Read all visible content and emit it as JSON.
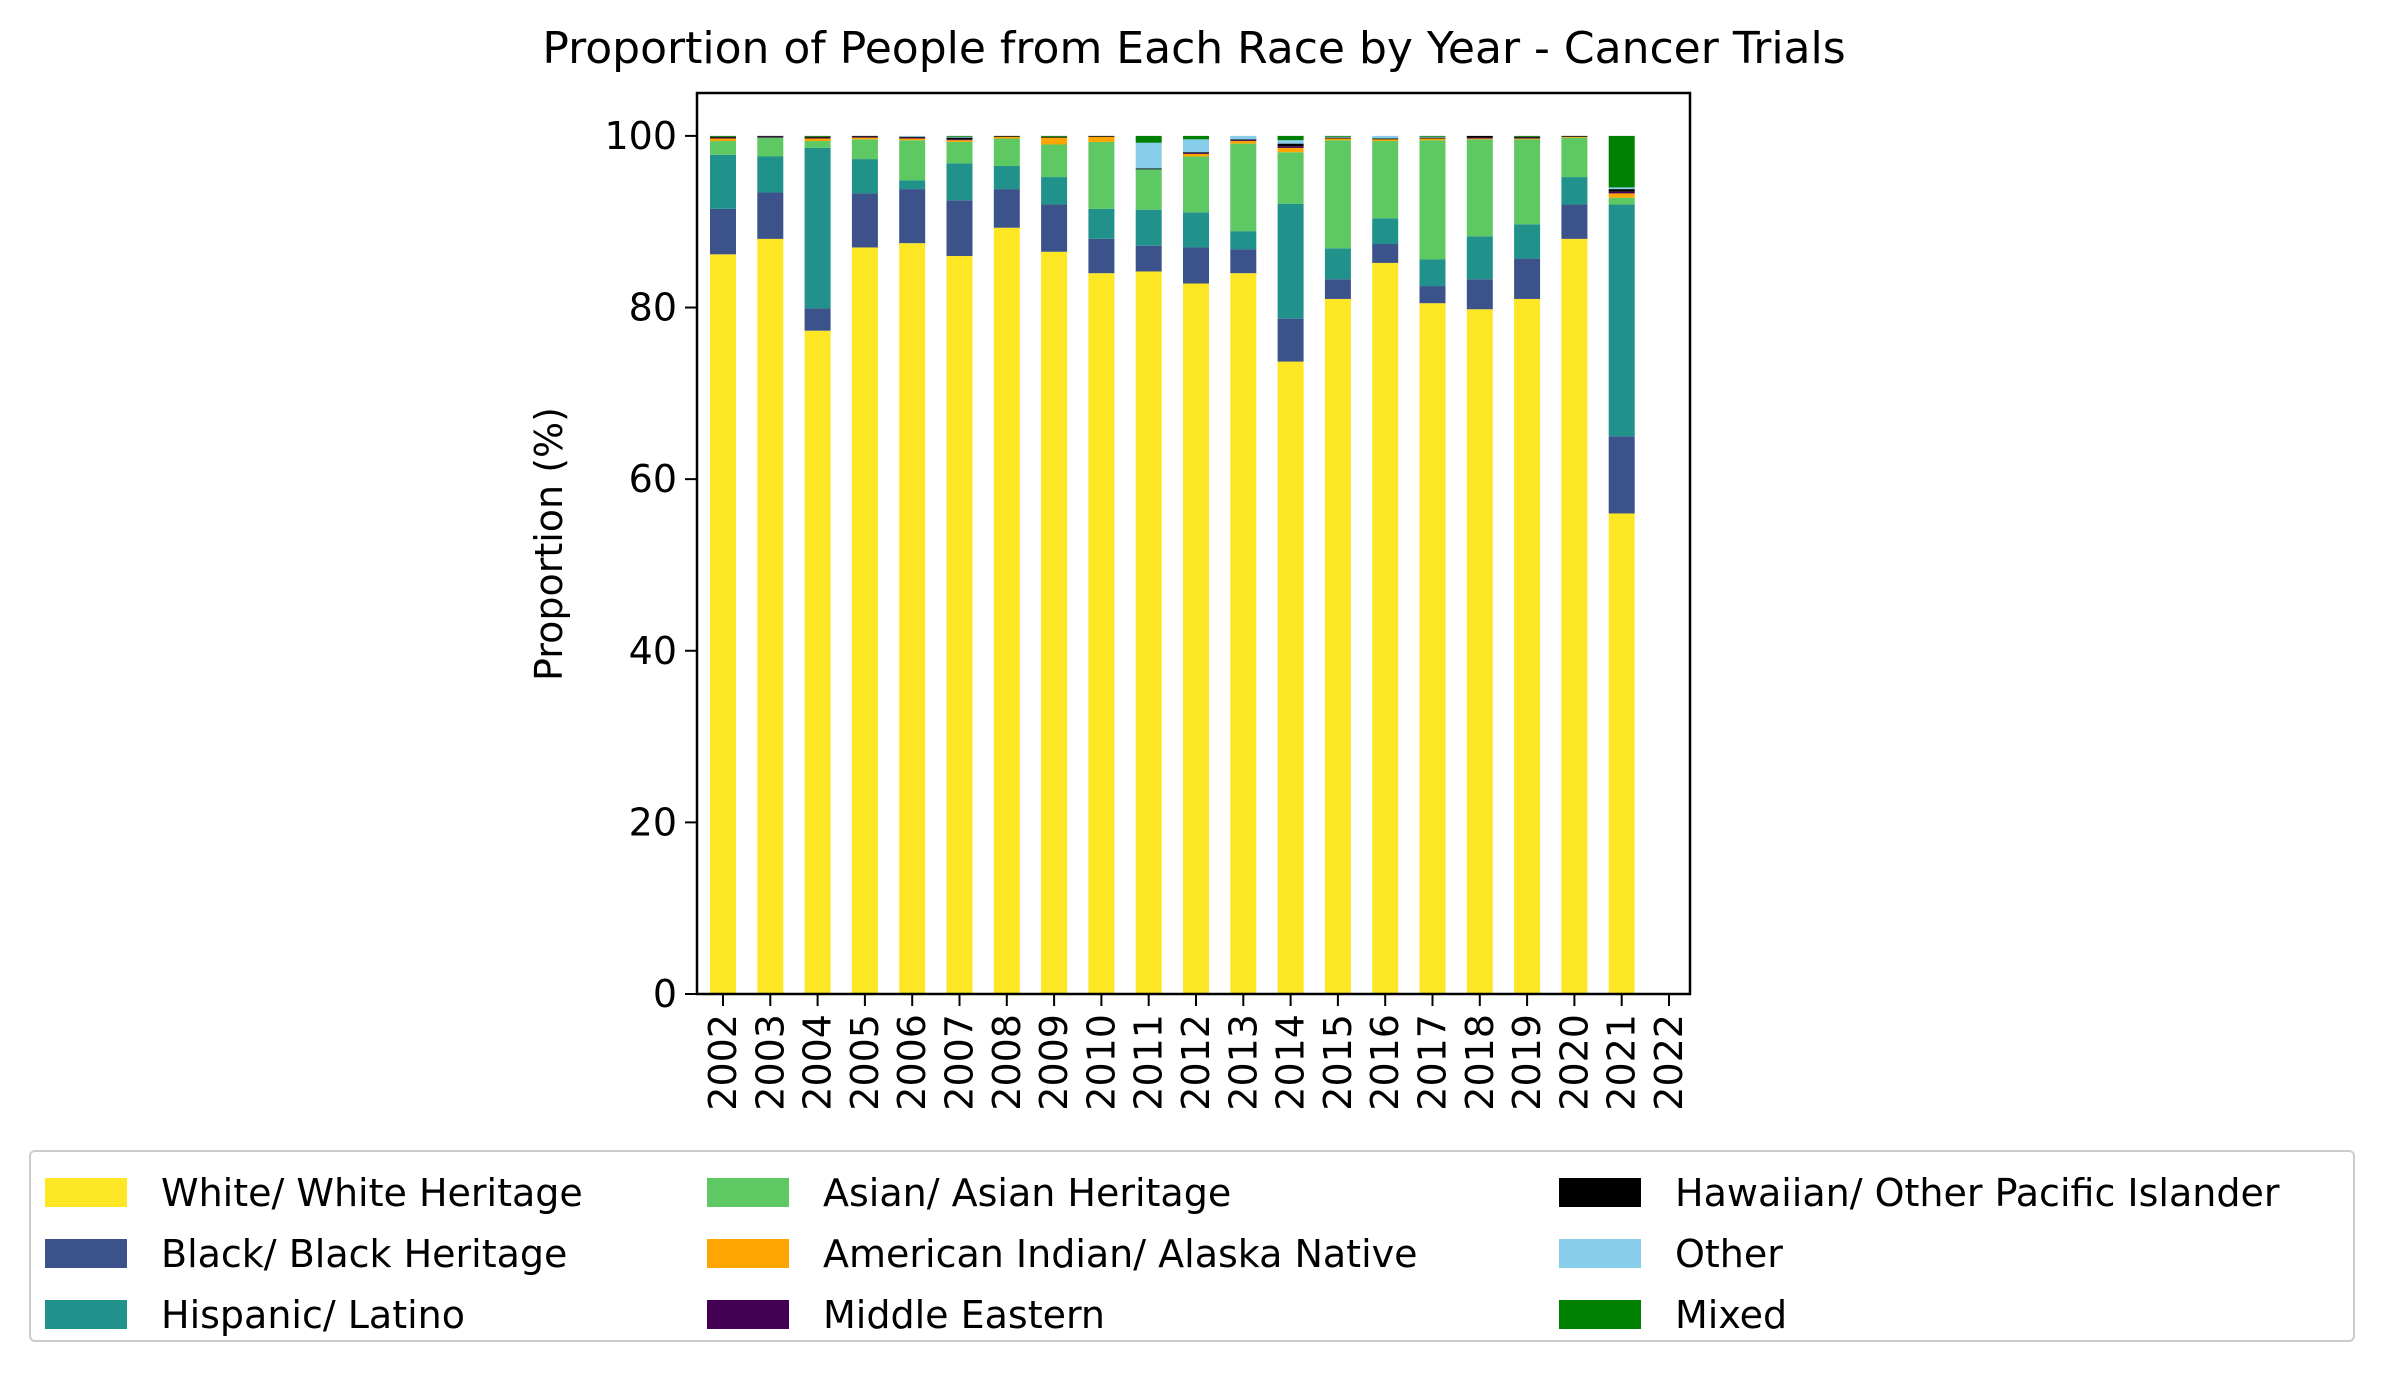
{
  "chart_data": {
    "type": "bar",
    "stacked": true,
    "title": "Proportion of People from Each Race by Year - Cancer Trials",
    "xlabel": "",
    "ylabel": "Proportion (%)",
    "ylim": [
      0,
      105
    ],
    "yticks": [
      "0",
      "20",
      "40",
      "60",
      "80",
      "100"
    ],
    "grid": false,
    "legend_position": "bottom",
    "categories": [
      "2002",
      "2003",
      "2004",
      "2005",
      "2006",
      "2007",
      "2008",
      "2009",
      "2010",
      "2011",
      "2012",
      "2013",
      "2014",
      "2015",
      "2016",
      "2017",
      "2018",
      "2019",
      "2020",
      "2021",
      "2022"
    ],
    "series": [
      {
        "name": "White/ White Heritage",
        "color": "#fde725",
        "values": [
          86.2,
          88.0,
          77.3,
          87.0,
          87.5,
          86.0,
          89.3,
          86.5,
          84.0,
          84.2,
          82.8,
          84.0,
          73.7,
          81.0,
          85.2,
          80.5,
          79.8,
          81.0,
          88.0,
          56.0,
          0
        ]
      },
      {
        "name": "Black/ Black Heritage",
        "color": "#3b528b",
        "values": [
          5.3,
          5.4,
          2.6,
          6.3,
          6.3,
          6.5,
          4.5,
          5.5,
          4.0,
          3.0,
          4.2,
          2.8,
          5.0,
          2.3,
          2.2,
          2.0,
          3.5,
          4.7,
          4.0,
          9.0,
          0
        ]
      },
      {
        "name": "Hispanic/ Latino",
        "color": "#21918c",
        "values": [
          6.3,
          4.2,
          18.7,
          4.0,
          1.0,
          4.3,
          2.7,
          3.2,
          3.5,
          4.2,
          4.1,
          2.1,
          13.4,
          3.6,
          3.0,
          3.1,
          5.0,
          4.0,
          3.2,
          27.0,
          0
        ]
      },
      {
        "name": "Asian/ Asian Heritage",
        "color": "#5ec962",
        "values": [
          1.6,
          2.2,
          0.8,
          2.3,
          4.7,
          2.5,
          3.2,
          3.8,
          7.8,
          4.7,
          6.5,
          10.2,
          6.0,
          12.6,
          9.0,
          13.9,
          11.3,
          9.9,
          4.6,
          0.8,
          0
        ]
      },
      {
        "name": "American Indian/ Alaska Native",
        "color": "#ffa500",
        "values": [
          0.3,
          0.0,
          0.3,
          0.2,
          0.2,
          0.2,
          0.2,
          0.8,
          0.6,
          0.0,
          0.3,
          0.3,
          0.5,
          0.2,
          0.2,
          0.2,
          0.1,
          0.1,
          0.1,
          0.5,
          0
        ]
      },
      {
        "name": "Middle Eastern",
        "color": "#440154",
        "values": [
          0.1,
          0.1,
          0.1,
          0.1,
          0.1,
          0.1,
          0.0,
          0.0,
          0.0,
          0.0,
          0.1,
          0.1,
          0.2,
          0.0,
          0.0,
          0.0,
          0.1,
          0.1,
          0.0,
          0.2,
          0
        ]
      },
      {
        "name": "Hawaiian/ Other Pacific Islander",
        "color": "#000000",
        "values": [
          0.1,
          0.1,
          0.1,
          0.1,
          0.1,
          0.2,
          0.1,
          0.1,
          0.1,
          0.1,
          0.1,
          0.1,
          0.3,
          0.1,
          0.1,
          0.1,
          0.2,
          0.1,
          0.1,
          0.3,
          0
        ]
      },
      {
        "name": "Other",
        "color": "#87ceeb",
        "values": [
          0.0,
          0.0,
          0.0,
          0.0,
          0.1,
          0.1,
          0.0,
          0.0,
          0.0,
          3.0,
          1.5,
          0.4,
          0.4,
          0.1,
          0.3,
          0.1,
          0.0,
          0.0,
          0.0,
          0.2,
          0
        ]
      },
      {
        "name": "Mixed",
        "color": "#008000",
        "values": [
          0.1,
          0.0,
          0.1,
          0.0,
          0.0,
          0.1,
          0.0,
          0.1,
          0.0,
          0.8,
          0.4,
          0.0,
          0.5,
          0.1,
          0.0,
          0.1,
          0.0,
          0.1,
          0.0,
          6.0,
          0
        ]
      }
    ]
  }
}
